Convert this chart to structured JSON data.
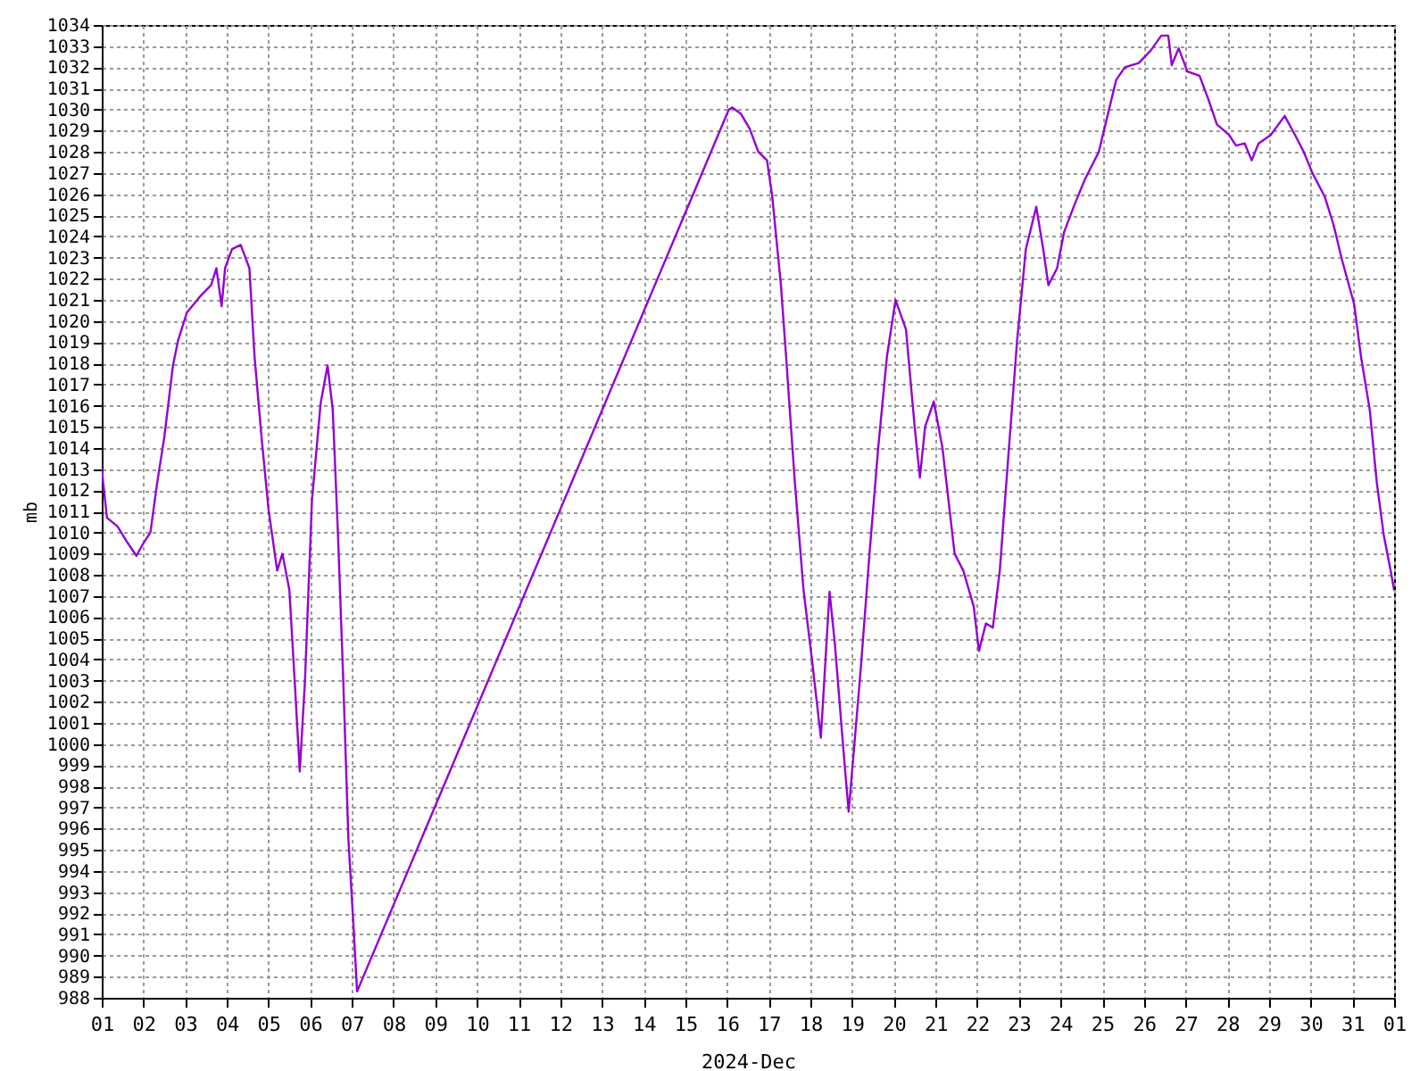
{
  "chart_data": {
    "type": "line",
    "xlabel": "2024-Dec",
    "ylabel": "mb",
    "grid": true,
    "line_style": "solid",
    "xlim": [
      "2024-12-01",
      "2025-01-01"
    ],
    "ylim": [
      988,
      1034
    ],
    "xticks": [
      {
        "value": "2024-12-01",
        "label": "01"
      },
      {
        "value": "2024-12-02",
        "label": "02"
      },
      {
        "value": "2024-12-03",
        "label": "03"
      },
      {
        "value": "2024-12-04",
        "label": "04"
      },
      {
        "value": "2024-12-05",
        "label": "05"
      },
      {
        "value": "2024-12-06",
        "label": "06"
      },
      {
        "value": "2024-12-07",
        "label": "07"
      },
      {
        "value": "2024-12-08",
        "label": "08"
      },
      {
        "value": "2024-12-09",
        "label": "09"
      },
      {
        "value": "2024-12-10",
        "label": "10"
      },
      {
        "value": "2024-12-11",
        "label": "11"
      },
      {
        "value": "2024-12-12",
        "label": "12"
      },
      {
        "value": "2024-12-13",
        "label": "13"
      },
      {
        "value": "2024-12-14",
        "label": "14"
      },
      {
        "value": "2024-12-15",
        "label": "15"
      },
      {
        "value": "2024-12-16",
        "label": "16"
      },
      {
        "value": "2024-12-17",
        "label": "17"
      },
      {
        "value": "2024-12-18",
        "label": "18"
      },
      {
        "value": "2024-12-19",
        "label": "19"
      },
      {
        "value": "2024-12-20",
        "label": "20"
      },
      {
        "value": "2024-12-21",
        "label": "21"
      },
      {
        "value": "2024-12-22",
        "label": "22"
      },
      {
        "value": "2024-12-23",
        "label": "23"
      },
      {
        "value": "2024-12-24",
        "label": "24"
      },
      {
        "value": "2024-12-25",
        "label": "25"
      },
      {
        "value": "2024-12-26",
        "label": "26"
      },
      {
        "value": "2024-12-27",
        "label": "27"
      },
      {
        "value": "2024-12-28",
        "label": "28"
      },
      {
        "value": "2024-12-29",
        "label": "29"
      },
      {
        "value": "2024-12-30",
        "label": "30"
      },
      {
        "value": "2024-12-31",
        "label": "31"
      },
      {
        "value": "2025-01-01",
        "label": "01"
      }
    ],
    "yticks": [
      988,
      989,
      990,
      991,
      992,
      993,
      994,
      995,
      996,
      997,
      998,
      999,
      1000,
      1001,
      1002,
      1003,
      1004,
      1005,
      1006,
      1007,
      1008,
      1009,
      1010,
      1011,
      1012,
      1013,
      1014,
      1015,
      1016,
      1017,
      1018,
      1019,
      1020,
      1021,
      1022,
      1023,
      1024,
      1025,
      1026,
      1027,
      1028,
      1029,
      1030,
      1031,
      1032,
      1033,
      1034
    ],
    "series": [
      {
        "color": "#9400d3",
        "x": [
          "2024-12-01T00:00",
          "2024-12-01T03:00",
          "2024-12-01T09:00",
          "2024-12-01T15:00",
          "2024-12-01T20:00",
          "2024-12-02T00:00",
          "2024-12-02T04:00",
          "2024-12-02T08:00",
          "2024-12-02T12:00",
          "2024-12-02T17:00",
          "2024-12-02T20:00",
          "2024-12-03T01:00",
          "2024-12-03T09:00",
          "2024-12-03T15:00",
          "2024-12-03T18:00",
          "2024-12-03T21:00",
          "2024-12-03T23:00",
          "2024-12-04T03:00",
          "2024-12-04T08:00",
          "2024-12-04T13:00",
          "2024-12-04T16:00",
          "2024-12-04T20:00",
          "2024-12-05T00:00",
          "2024-12-05T05:00",
          "2024-12-05T08:00",
          "2024-12-05T12:00",
          "2024-12-05T15:00",
          "2024-12-05T18:00",
          "2024-12-05T21:00",
          "2024-12-06T01:00",
          "2024-12-06T06:00",
          "2024-12-06T10:00",
          "2024-12-06T13:00",
          "2024-12-06T16:00",
          "2024-12-06T19:00",
          "2024-12-06T22:00",
          "2024-12-07T01:00",
          "2024-12-07T03:00",
          "2024-12-16T01:00",
          "2024-12-16T03:00",
          "2024-12-16T08:00",
          "2024-12-16T13:00",
          "2024-12-16T18:00",
          "2024-12-16T23:00",
          "2024-12-17T02:00",
          "2024-12-17T07:00",
          "2024-12-17T10:00",
          "2024-12-17T15:00",
          "2024-12-17T20:00",
          "2024-12-18T01:00",
          "2024-12-18T06:00",
          "2024-12-18T11:00",
          "2024-12-18T14:00",
          "2024-12-18T19:00",
          "2024-12-18T22:00",
          "2024-12-19T01:00",
          "2024-12-19T05:00",
          "2024-12-19T10:00",
          "2024-12-19T15:00",
          "2024-12-19T20:00",
          "2024-12-20T01:00",
          "2024-12-20T07:00",
          "2024-12-20T12:00",
          "2024-12-20T15:00",
          "2024-12-20T18:00",
          "2024-12-20T23:00",
          "2024-12-21T04:00",
          "2024-12-21T11:00",
          "2024-12-21T16:00",
          "2024-12-21T22:00",
          "2024-12-22T01:00",
          "2024-12-22T05:00",
          "2024-12-22T09:00",
          "2024-12-22T13:00",
          "2024-12-22T18:00",
          "2024-12-22T23:00",
          "2024-12-23T04:00",
          "2024-12-23T10:00",
          "2024-12-23T14:00",
          "2024-12-23T17:00",
          "2024-12-23T22:00",
          "2024-12-24T02:00",
          "2024-12-24T08:00",
          "2024-12-24T14:00",
          "2024-12-24T22:00",
          "2024-12-25T03:00",
          "2024-12-25T08:00",
          "2024-12-25T13:00",
          "2024-12-25T21:00",
          "2024-12-26T04:00",
          "2024-12-26T10:00",
          "2024-12-26T14:00",
          "2024-12-26T16:00",
          "2024-12-26T20:00",
          "2024-12-27T01:00",
          "2024-12-27T08:00",
          "2024-12-27T13:00",
          "2024-12-27T18:00",
          "2024-12-28T01:00",
          "2024-12-28T05:00",
          "2024-12-28T10:00",
          "2024-12-28T14:00",
          "2024-12-28T18:00",
          "2024-12-29T01:00",
          "2024-12-29T09:00",
          "2024-12-29T15:00",
          "2024-12-29T20:00",
          "2024-12-30T01:00",
          "2024-12-30T08:00",
          "2024-12-30T13:00",
          "2024-12-30T18:00",
          "2024-12-31T01:00",
          "2024-12-31T05:00",
          "2024-12-31T10:00",
          "2024-12-31T14:00",
          "2024-12-31T18:00",
          "2024-12-31T22:00",
          "2025-01-01T00:00"
        ],
        "values": [
          1013,
          1010.7,
          1010.3,
          1009.5,
          1008.9,
          1009.5,
          1010,
          1012.4,
          1014.5,
          1017.9,
          1019.1,
          1020.4,
          1021.2,
          1021.7,
          1022.5,
          1020.7,
          1022.5,
          1023.4,
          1023.6,
          1022.5,
          1018.3,
          1014.5,
          1011.1,
          1008.2,
          1009,
          1007.3,
          1003.1,
          998.7,
          1003,
          1011.5,
          1016.1,
          1017.9,
          1015.8,
          1009.9,
          1003.1,
          995.5,
          991.3,
          988.3,
          1030,
          1030.1,
          1029.8,
          1029.1,
          1028,
          1027.6,
          1025.9,
          1021.7,
          1018.3,
          1012.4,
          1007.3,
          1003.9,
          1000.3,
          1007.2,
          1004.8,
          999.7,
          996.8,
          999.7,
          1003.6,
          1009,
          1014,
          1018.3,
          1021,
          1019.6,
          1015,
          1012.6,
          1015,
          1016.2,
          1014,
          1009,
          1008.2,
          1006.5,
          1004.4,
          1005.7,
          1005.5,
          1008.2,
          1013.7,
          1019.1,
          1023.4,
          1025.4,
          1023.4,
          1021.7,
          1022.5,
          1024.2,
          1025.5,
          1026.7,
          1028,
          1029.7,
          1031.4,
          1032,
          1032.2,
          1032.8,
          1033.5,
          1033.5,
          1032.1,
          1032.9,
          1031.8,
          1031.6,
          1030.5,
          1029.3,
          1028.8,
          1028.3,
          1028.4,
          1027.6,
          1028.4,
          1028.8,
          1029.7,
          1028.8,
          1028,
          1027,
          1025.9,
          1024.6,
          1022.9,
          1020.8,
          1018.3,
          1015.8,
          1012.4,
          1009.9,
          1008.2,
          1007.3
        ]
      }
    ]
  }
}
